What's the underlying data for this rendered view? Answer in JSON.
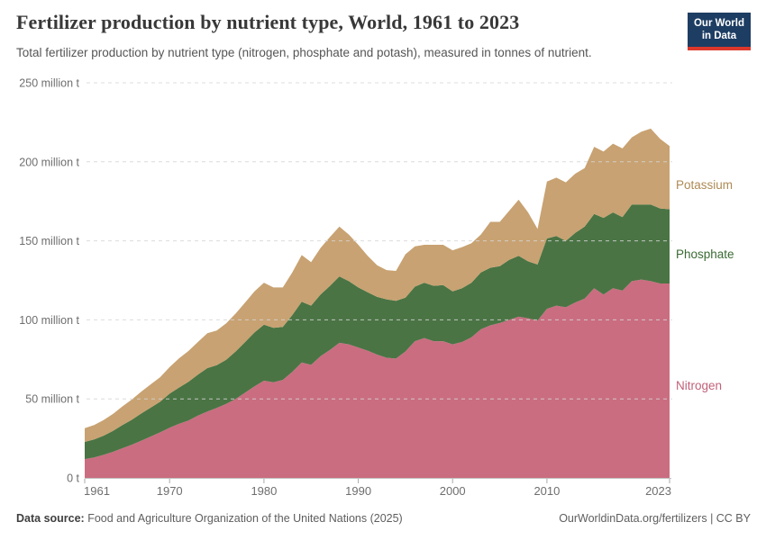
{
  "header": {
    "logo": {
      "line1": "Our World",
      "line2": "in Data",
      "bg_color": "#1d3d63",
      "accent_color": "#dc382c"
    }
  },
  "chart_data": {
    "type": "area",
    "stacked": true,
    "title": "Fertilizer production by nutrient type, World, 1961 to 2023",
    "subtitle": "Total fertilizer production by nutrient type (nitrogen, phosphate and potash), measured in tonnes of nutrient.",
    "unit": "million tonnes of nutrient",
    "xlim": [
      1961,
      2023
    ],
    "ylim": [
      0,
      250
    ],
    "grid": "horizontal-dashed",
    "legend_position": "right-inline",
    "x_ticks": [
      1961,
      1970,
      1980,
      1990,
      2000,
      2010,
      2023
    ],
    "y_ticks": [
      {
        "value": 0,
        "label": "0 t"
      },
      {
        "value": 50,
        "label": "50 million t"
      },
      {
        "value": 100,
        "label": "100 million t"
      },
      {
        "value": 150,
        "label": "150 million t"
      },
      {
        "value": 200,
        "label": "200 million t"
      },
      {
        "value": 250,
        "label": "250 million t"
      }
    ],
    "x": [
      1961,
      1962,
      1963,
      1964,
      1965,
      1966,
      1967,
      1968,
      1969,
      1970,
      1971,
      1972,
      1973,
      1974,
      1975,
      1976,
      1977,
      1978,
      1979,
      1980,
      1981,
      1982,
      1983,
      1984,
      1985,
      1986,
      1987,
      1988,
      1989,
      1990,
      1991,
      1992,
      1993,
      1994,
      1995,
      1996,
      1997,
      1998,
      1999,
      2000,
      2001,
      2002,
      2003,
      2004,
      2005,
      2006,
      2007,
      2008,
      2009,
      2010,
      2011,
      2012,
      2013,
      2014,
      2015,
      2016,
      2017,
      2018,
      2019,
      2020,
      2021,
      2022,
      2023
    ],
    "series": [
      {
        "name": "Nitrogen",
        "color": "#ca6d80",
        "label_color": "#c2617a",
        "values": [
          11.9,
          13.0,
          14.6,
          16.5,
          18.8,
          21.0,
          23.6,
          26.2,
          28.8,
          31.8,
          34.2,
          36.3,
          39.4,
          42.0,
          44.3,
          46.8,
          50.0,
          54.0,
          58.0,
          61.5,
          60.5,
          62.0,
          67.0,
          73.0,
          71.5,
          77.0,
          81.0,
          85.5,
          84.5,
          82.5,
          80.5,
          78.0,
          76.0,
          75.5,
          80.0,
          86.5,
          88.5,
          86.5,
          86.5,
          84.5,
          86.0,
          89.0,
          94.0,
          96.5,
          98.0,
          100.0,
          102.0,
          101.0,
          99.5,
          107.0,
          109.0,
          108.0,
          111.0,
          113.5,
          120.0,
          116.0,
          120.0,
          118.5,
          124.5,
          125.5,
          124.5,
          123.0,
          123.0
        ]
      },
      {
        "name": "Phosphate",
        "color": "#4a7444",
        "label_color": "#3a6a33",
        "values": [
          10.9,
          11.3,
          12.1,
          13.3,
          14.6,
          15.8,
          17.2,
          18.3,
          19.4,
          21.5,
          23.0,
          24.5,
          26.0,
          27.5,
          27.0,
          28.0,
          30.0,
          32.0,
          34.0,
          35.5,
          34.5,
          33.5,
          36.0,
          38.5,
          37.5,
          39.0,
          40.5,
          42.0,
          40.0,
          38.0,
          37.0,
          36.5,
          37.0,
          36.5,
          34.0,
          34.5,
          35.0,
          35.0,
          35.5,
          33.5,
          34.0,
          34.5,
          36.0,
          36.5,
          36.0,
          38.0,
          38.5,
          36.0,
          35.5,
          44.5,
          44.0,
          42.0,
          44.0,
          45.5,
          47.0,
          48.5,
          48.0,
          46.5,
          48.5,
          47.5,
          48.5,
          47.5,
          47.0
        ]
      },
      {
        "name": "Potassium",
        "color": "#c8a272",
        "label_color": "#ae8a55",
        "values": [
          8.7,
          9.1,
          9.9,
          10.7,
          11.9,
          12.8,
          13.8,
          14.7,
          15.5,
          16.8,
          18.5,
          19.5,
          20.6,
          22.0,
          22.0,
          23.0,
          24.0,
          25.0,
          26.0,
          26.5,
          25.5,
          25.0,
          27.0,
          29.5,
          27.5,
          29.5,
          31.0,
          31.5,
          29.5,
          27.0,
          23.0,
          20.0,
          18.5,
          19.0,
          27.5,
          25.5,
          24.0,
          26.0,
          25.5,
          26.0,
          26.0,
          25.0,
          24.0,
          29.0,
          28.0,
          31.0,
          35.5,
          31.0,
          22.5,
          36.0,
          37.0,
          37.0,
          37.5,
          37.0,
          42.5,
          42.0,
          43.5,
          43.5,
          42.5,
          46.0,
          48.0,
          44.0,
          40.0
        ]
      }
    ]
  },
  "footer": {
    "source_label": "Data source:",
    "source_text": " Food and Agriculture Organization of the United Nations (2025)",
    "credit": "OurWorldinData.org/fertilizers | CC BY"
  }
}
